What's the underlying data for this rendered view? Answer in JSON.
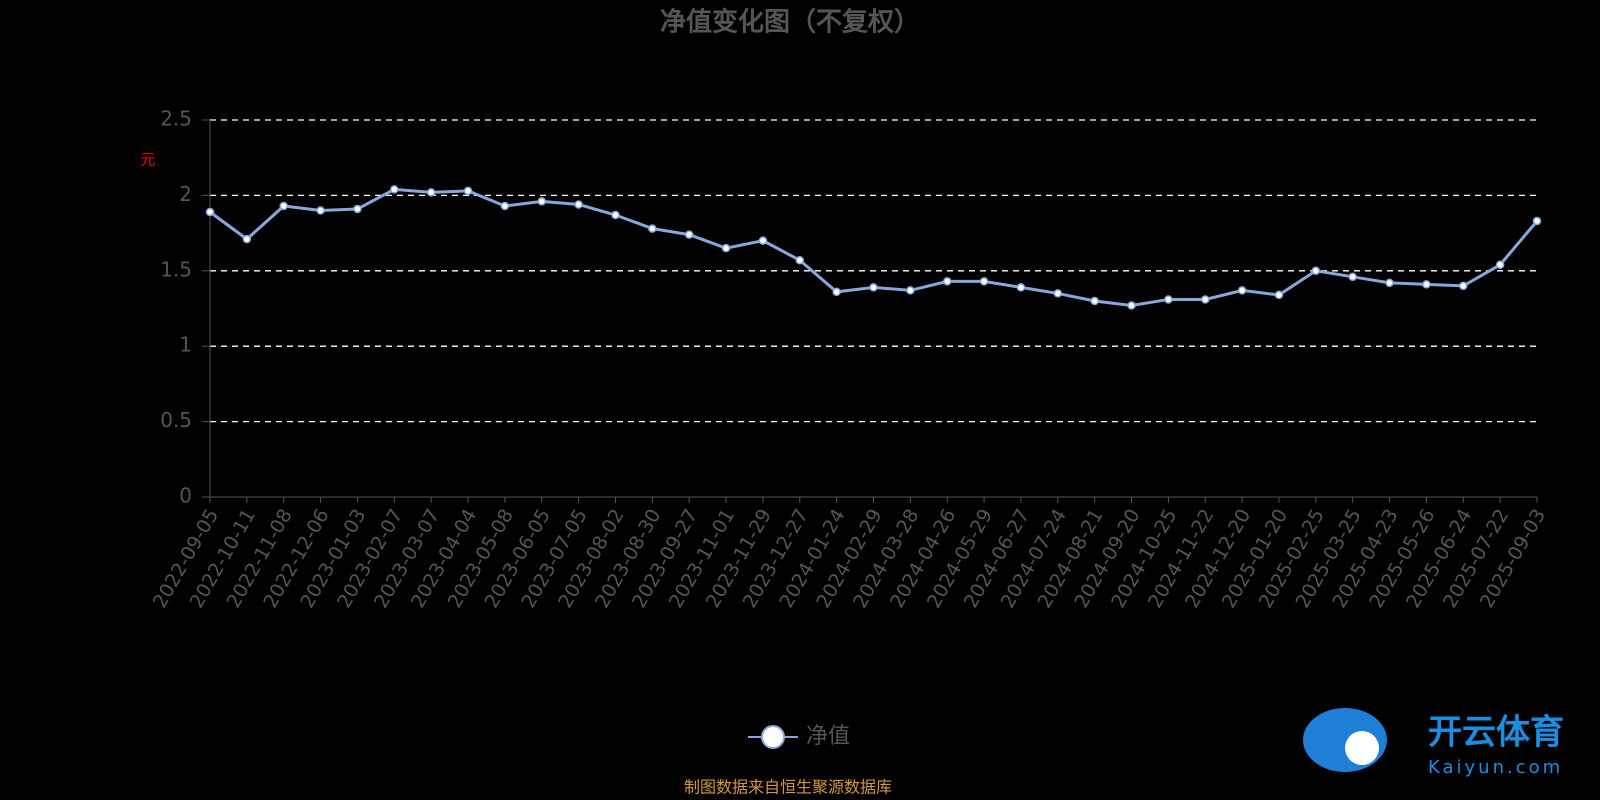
{
  "chart_data": {
    "type": "line",
    "title": "净值变化图（不复权）",
    "y_label": "元",
    "x": [
      "2022-09-05",
      "2022-10-11",
      "2022-11-08",
      "2022-12-06",
      "2023-01-03",
      "2023-02-07",
      "2023-03-07",
      "2023-04-04",
      "2023-05-08",
      "2023-06-05",
      "2023-07-05",
      "2023-08-02",
      "2023-08-30",
      "2023-09-27",
      "2023-11-01",
      "2023-11-29",
      "2023-12-27",
      "2024-01-24",
      "2024-02-29",
      "2024-03-28",
      "2024-04-26",
      "2024-05-29",
      "2024-06-27",
      "2024-07-24",
      "2024-08-21",
      "2024-09-20",
      "2024-10-25",
      "2024-11-22",
      "2024-12-20",
      "2025-01-20",
      "2025-02-25",
      "2025-03-25",
      "2025-04-23",
      "2025-05-26",
      "2025-06-24",
      "2025-07-22",
      "2025-09-03"
    ],
    "series": [
      {
        "name": "净值",
        "color": "#86a8dc",
        "values": [
          1.89,
          1.71,
          1.93,
          1.9,
          1.91,
          2.04,
          2.02,
          2.03,
          1.93,
          1.96,
          1.94,
          1.87,
          1.78,
          1.74,
          1.65,
          1.7,
          1.57,
          1.36,
          1.39,
          1.37,
          1.43,
          1.43,
          1.39,
          1.35,
          1.3,
          1.27,
          1.31,
          1.31,
          1.37,
          1.34,
          1.5,
          1.46,
          1.42,
          1.41,
          1.4,
          1.54,
          1.83
        ]
      }
    ],
    "ylim": [
      0,
      2.5
    ],
    "yticks": [
      0,
      0.5,
      1,
      1.5,
      2,
      2.5
    ],
    "grid": true,
    "legend": "bottom",
    "source": "制图数据来自恒生聚源数据库"
  },
  "watermark": {
    "brand": "开云体育",
    "site": "Kaiyun.com"
  }
}
